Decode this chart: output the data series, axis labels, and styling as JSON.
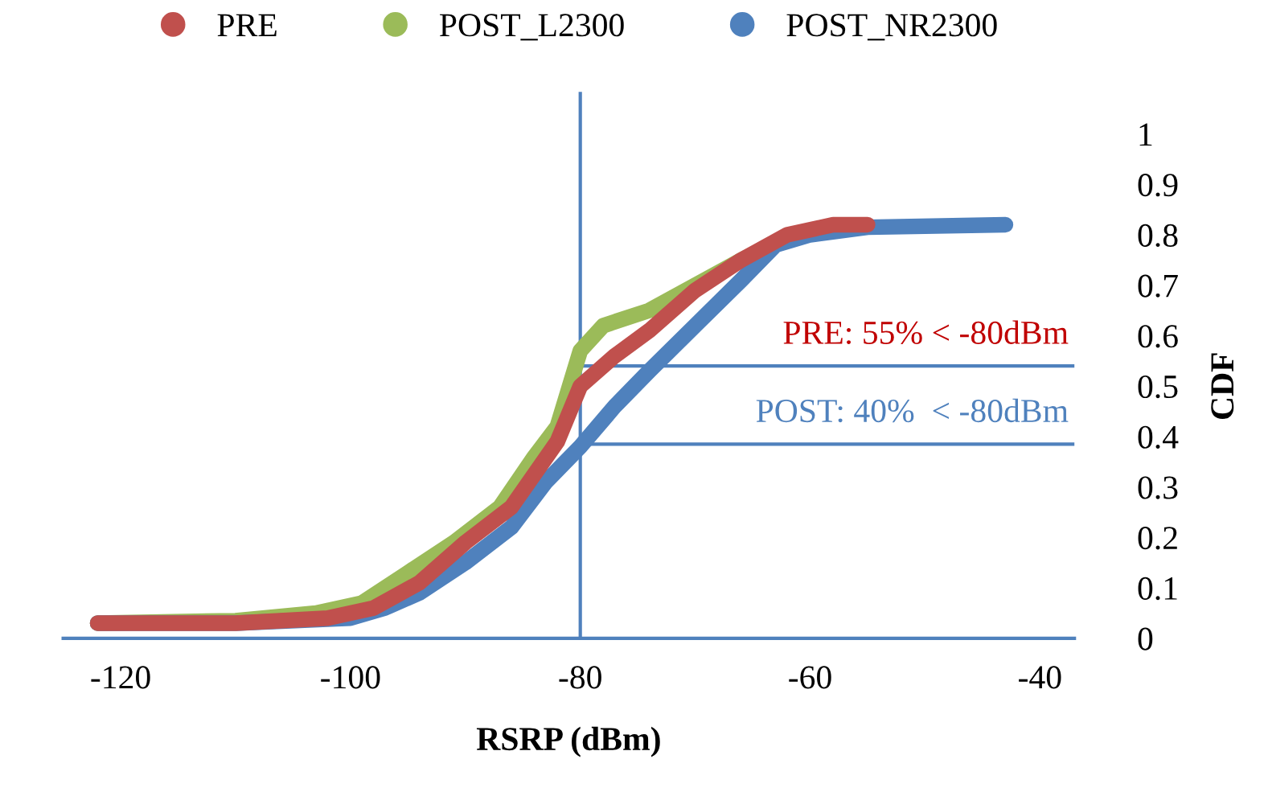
{
  "chart_data": {
    "type": "line",
    "xlabel": "RSRP (dBm)",
    "ylabel": "CDF",
    "xlim": [
      -125,
      -37
    ],
    "xticks": [
      -120,
      -100,
      -80,
      -60,
      -40
    ],
    "ylim": [
      0,
      1
    ],
    "yticks": [
      0,
      0.1,
      0.2,
      0.3,
      0.4,
      0.5,
      0.6,
      0.7,
      0.8,
      0.9,
      1
    ],
    "grid": false,
    "legend": "top",
    "line_style": "solid",
    "series": [
      {
        "name": "PRE",
        "color": "#c0504d",
        "x": [
          -122,
          -110,
          -102,
          -98,
          -94,
          -90,
          -86,
          -82,
          -80,
          -77,
          -74,
          -70,
          -66,
          -62,
          -58,
          -55
        ],
        "values": [
          0.03,
          0.03,
          0.04,
          0.06,
          0.11,
          0.19,
          0.26,
          0.39,
          0.5,
          0.56,
          0.61,
          0.69,
          0.75,
          0.8,
          0.82,
          0.82
        ]
      },
      {
        "name": "POST_L2300",
        "color": "#9bbb59",
        "x": [
          -122,
          -110,
          -103,
          -99,
          -95,
          -91,
          -87,
          -84,
          -82,
          -80,
          -78,
          -74,
          -70,
          -66,
          -62
        ],
        "values": [
          0.03,
          0.035,
          0.05,
          0.07,
          0.13,
          0.19,
          0.26,
          0.36,
          0.42,
          0.57,
          0.62,
          0.65,
          0.7,
          0.75,
          0.795
        ]
      },
      {
        "name": "POST_NR2300",
        "color": "#4f81bd",
        "x": [
          -122,
          -110,
          -100,
          -97,
          -94,
          -90,
          -86,
          -83,
          -80,
          -77,
          -74,
          -70,
          -66,
          -63,
          -60,
          -55,
          -43
        ],
        "values": [
          0.03,
          0.03,
          0.04,
          0.06,
          0.09,
          0.15,
          0.22,
          0.31,
          0.38,
          0.46,
          0.53,
          0.62,
          0.71,
          0.78,
          0.8,
          0.815,
          0.82
        ]
      }
    ],
    "ref_lines": [
      {
        "axis": "x",
        "value": -80,
        "color": "#4f81bd"
      },
      {
        "axis": "y",
        "value": 0.54,
        "color": "#4f81bd"
      },
      {
        "axis": "y",
        "value": 0.385,
        "color": "#4f81bd"
      }
    ],
    "annotations": [
      "PRE: 55% < -80dBm",
      "POST: 40%  < -80dBm"
    ]
  }
}
